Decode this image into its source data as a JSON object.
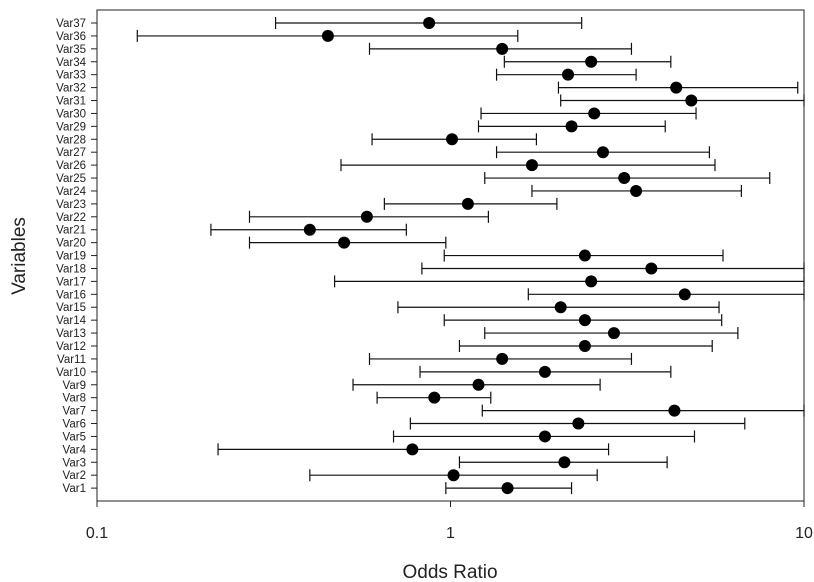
{
  "chart_data": {
    "type": "scatter",
    "subtype": "forest-plot",
    "title": "",
    "xlabel": "Odds Ratio",
    "ylabel": "Variables",
    "xscale": "log",
    "xlim": [
      0.1,
      10
    ],
    "xticks": [
      0.1,
      1,
      10
    ],
    "xtick_labels": [
      "0.1",
      "1",
      "10"
    ],
    "grid": false,
    "legend": "none",
    "series": [
      {
        "name": "",
        "categories": [
          "Var1",
          "Var2",
          "Var3",
          "Var4",
          "Var5",
          "Var6",
          "Var7",
          "Var8",
          "Var9",
          "Var10",
          "Var11",
          "Var12",
          "Var13",
          "Var14",
          "Var15",
          "Var16",
          "Var17",
          "Var18",
          "Var19",
          "Var20",
          "Var21",
          "Var22",
          "Var23",
          "Var24",
          "Var25",
          "Var26",
          "Var27",
          "Var28",
          "Var29",
          "Var30",
          "Var31",
          "Var32",
          "Var33",
          "Var34",
          "Var35",
          "Var36",
          "Var37"
        ],
        "estimate": [
          1.45,
          1.02,
          2.1,
          0.78,
          1.85,
          2.3,
          4.3,
          0.9,
          1.2,
          1.85,
          1.4,
          2.4,
          2.9,
          2.4,
          2.05,
          4.6,
          2.5,
          3.7,
          2.4,
          0.5,
          0.4,
          0.58,
          1.12,
          3.35,
          3.1,
          1.7,
          2.7,
          1.01,
          2.2,
          2.55,
          4.8,
          4.35,
          2.15,
          2.5,
          1.4,
          0.45,
          0.87
        ],
        "lower": [
          0.97,
          0.4,
          1.06,
          0.22,
          0.69,
          0.77,
          1.23,
          0.62,
          0.53,
          0.82,
          0.59,
          1.06,
          1.25,
          0.96,
          0.71,
          1.66,
          0.47,
          0.83,
          0.96,
          0.27,
          0.21,
          0.27,
          0.65,
          1.7,
          1.25,
          0.49,
          1.35,
          0.6,
          1.2,
          1.22,
          2.05,
          2.02,
          1.35,
          1.42,
          0.59,
          0.13,
          0.32
        ],
        "upper": [
          2.2,
          2.6,
          4.1,
          2.8,
          4.9,
          6.8,
          10,
          1.3,
          2.65,
          4.2,
          3.25,
          5.5,
          6.5,
          5.85,
          5.75,
          10,
          10,
          10,
          5.9,
          0.97,
          0.75,
          1.28,
          2.0,
          6.65,
          8.0,
          5.6,
          5.4,
          1.75,
          4.05,
          4.95,
          10,
          9.6,
          3.35,
          4.2,
          3.25,
          1.55,
          2.35
        ]
      }
    ]
  }
}
